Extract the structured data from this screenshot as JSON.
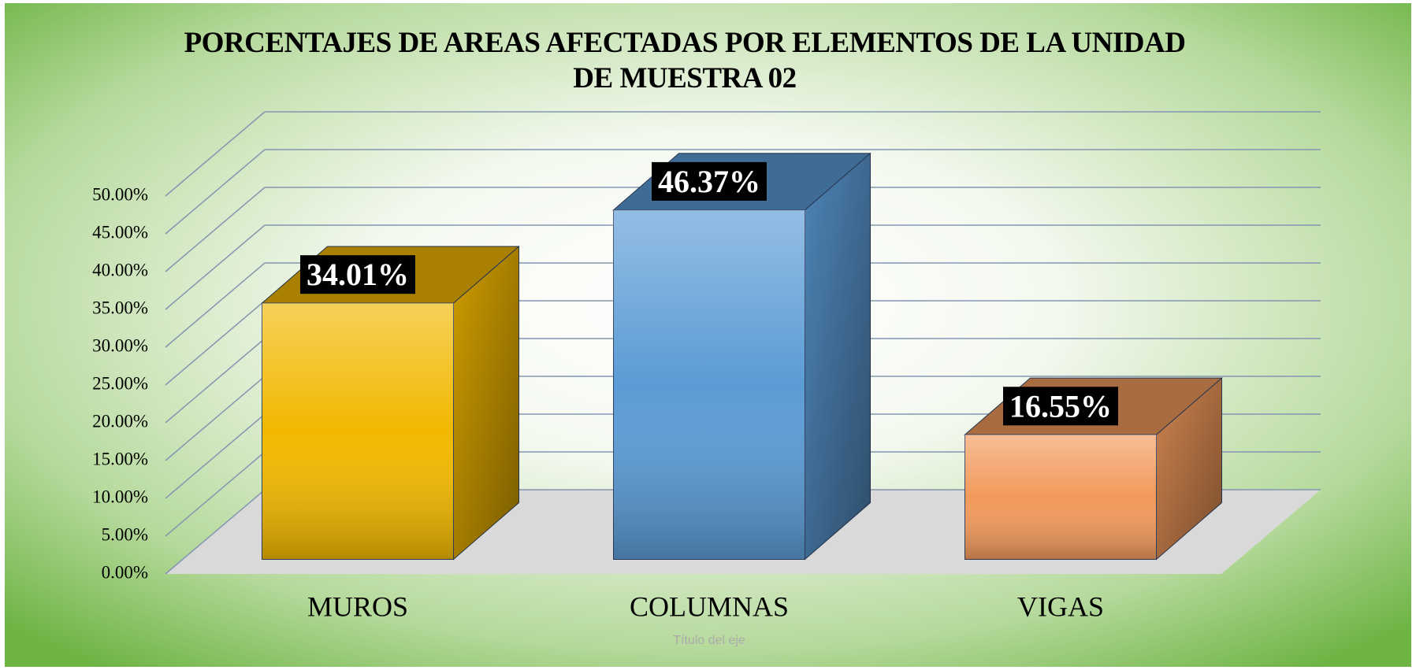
{
  "chart_data": {
    "type": "bar3d",
    "title": "PORCENTAJES DE AREAS AFECTADAS POR ELEMENTOS DE LA UNIDAD DE MUESTRA 02",
    "x_label": "Título del eje",
    "categories": [
      "MUROS",
      "COLUMNAS",
      "VIGAS"
    ],
    "values": [
      34.01,
      46.37,
      16.55
    ],
    "value_labels": [
      "34.01%",
      "46.37%",
      "16.55%"
    ],
    "colors": [
      "#f2b800",
      "#5b9bd5",
      "#f29a5c"
    ],
    "ylim": [
      0,
      50
    ],
    "yticks": [
      {
        "value": 0,
        "label": "0.00%"
      },
      {
        "value": 5,
        "label": "5.00%"
      },
      {
        "value": 10,
        "label": "10.00%"
      },
      {
        "value": 15,
        "label": "15.00%"
      },
      {
        "value": 20,
        "label": "20.00%"
      },
      {
        "value": 25,
        "label": "25.00%"
      },
      {
        "value": 30,
        "label": "30.00%"
      },
      {
        "value": 35,
        "label": "35.00%"
      },
      {
        "value": 40,
        "label": "40.00%"
      },
      {
        "value": 45,
        "label": "45.00%"
      },
      {
        "value": 50,
        "label": "50.00%"
      }
    ],
    "grid": true
  }
}
